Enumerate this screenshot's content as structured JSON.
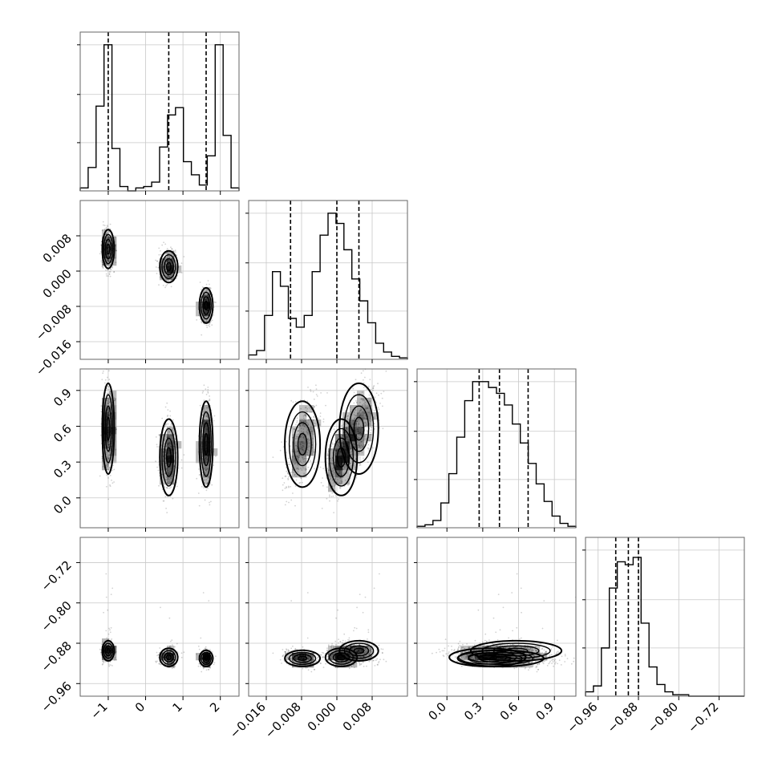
{
  "chart_data": {
    "type": "corner",
    "grid": true,
    "parameters": [
      {
        "range": [
          -1.75,
          2.5
        ],
        "ticks": [
          -1,
          0,
          1,
          2
        ],
        "tick_labels": [
          "−1",
          "0",
          "1",
          "2"
        ],
        "quantiles": [
          -1.0,
          0.62,
          1.62
        ]
      },
      {
        "range": [
          -0.02,
          0.016
        ],
        "ticks": [
          -0.016,
          -0.008,
          0.0,
          0.008
        ],
        "tick_labels": [
          "−0.016",
          "−0.008",
          "0.000",
          "0.008"
        ],
        "quantiles": [
          -0.0105,
          0.0,
          0.005
        ]
      },
      {
        "range": [
          -0.25,
          1.08
        ],
        "ticks": [
          0.0,
          0.3,
          0.6,
          0.9
        ],
        "tick_labels": [
          "0.0",
          "0.3",
          "0.6",
          "0.9"
        ],
        "quantiles": [
          0.27,
          0.44,
          0.68
        ]
      },
      {
        "range": [
          -0.985,
          -0.67
        ],
        "ticks": [
          -0.96,
          -0.88,
          -0.8,
          -0.72
        ],
        "tick_labels": [
          "−0.96",
          "−0.88",
          "−0.80",
          "−0.72"
        ],
        "quantiles": [
          -0.925,
          -0.9,
          -0.88
        ]
      }
    ],
    "clusters": [
      {
        "weight": 0.33,
        "mean": [
          -1.0,
          0.005,
          0.58,
          -0.895
        ],
        "sd": [
          0.08,
          0.0022,
          0.19,
          0.01
        ]
      },
      {
        "weight": 0.33,
        "mean": [
          0.62,
          0.001,
          0.34,
          -0.908
        ],
        "sd": [
          0.12,
          0.0018,
          0.16,
          0.009
        ]
      },
      {
        "weight": 0.34,
        "mean": [
          1.62,
          -0.0078,
          0.45,
          -0.91
        ],
        "sd": [
          0.09,
          0.002,
          0.18,
          0.008
        ]
      }
    ],
    "histograms": [
      {
        "counts": [
          0.02,
          0.16,
          0.58,
          1.0,
          0.29,
          0.03,
          0.0,
          0.02,
          0.03,
          0.06,
          0.3,
          0.52,
          0.57,
          0.2,
          0.11,
          0.04,
          0.24,
          1.0,
          0.38,
          0.02
        ]
      },
      {
        "counts": [
          0.03,
          0.06,
          0.3,
          0.6,
          0.5,
          0.28,
          0.22,
          0.3,
          0.6,
          0.85,
          1.0,
          0.93,
          0.75,
          0.55,
          0.4,
          0.25,
          0.11,
          0.05,
          0.02,
          0.01
        ]
      },
      {
        "counts": [
          0.01,
          0.02,
          0.05,
          0.17,
          0.37,
          0.62,
          0.87,
          1.0,
          1.0,
          0.96,
          0.92,
          0.84,
          0.71,
          0.58,
          0.44,
          0.3,
          0.18,
          0.08,
          0.03,
          0.01
        ]
      },
      {
        "counts": [
          0.03,
          0.07,
          0.33,
          0.74,
          0.92,
          0.9,
          0.95,
          0.5,
          0.2,
          0.08,
          0.03,
          0.01,
          0.01,
          0.0,
          0.0,
          0.0,
          0.0,
          0.0,
          0.0,
          0.0
        ]
      }
    ]
  }
}
